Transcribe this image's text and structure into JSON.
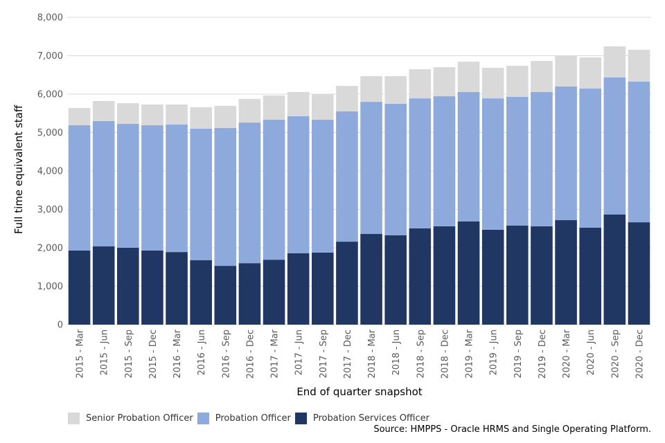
{
  "chart_data": {
    "type": "bar",
    "stacked": true,
    "title": "",
    "xlabel": "End of quarter snapshot",
    "ylabel": "Full time equivalent staff",
    "ylim": [
      0,
      8000
    ],
    "yticks": [
      0,
      1000,
      2000,
      3000,
      4000,
      5000,
      6000,
      7000,
      8000
    ],
    "ytick_labels": [
      "0",
      "1,000",
      "2,000",
      "3,000",
      "4,000",
      "5,000",
      "6,000",
      "7,000",
      "8,000"
    ],
    "grid": true,
    "legend_position": "bottom-left",
    "categories": [
      "2015 - Mar",
      "2015 - Jun",
      "2015 - Sep",
      "2015 - Dec",
      "2016 - Mar",
      "2016 - Jun",
      "2016 - Sep",
      "2016 - Dec",
      "2017 - Mar",
      "2017 - Jun",
      "2017 - Sep",
      "2017 - Dec",
      "2018 - Mar",
      "2018 - Jun",
      "2018 - Sep",
      "2018 - Dec",
      "2019 - Mar",
      "2019 - Jun",
      "2019 - Sep",
      "2019 - Dec",
      "2020 - Mar",
      "2020 - Jun",
      "2020 - Sep",
      "2020 - Dec"
    ],
    "series": [
      {
        "name": "Probation Services Officer",
        "color": "#203764",
        "values": [
          1930,
          2040,
          2000,
          1930,
          1890,
          1680,
          1530,
          1600,
          1690,
          1860,
          1875,
          2160,
          2360,
          2325,
          2505,
          2560,
          2685,
          2470,
          2580,
          2560,
          2720,
          2525,
          2865,
          2665
        ]
      },
      {
        "name": "Probation Officer",
        "color": "#8EA9DB",
        "values": [
          3260,
          3260,
          3225,
          3260,
          3320,
          3420,
          3590,
          3660,
          3645,
          3565,
          3460,
          3390,
          3440,
          3425,
          3385,
          3385,
          3370,
          3420,
          3350,
          3495,
          3480,
          3620,
          3570,
          3660
        ]
      },
      {
        "name": "Senior Probation Officer",
        "color": "#D9D9D9",
        "values": [
          450,
          520,
          540,
          540,
          520,
          560,
          575,
          615,
          630,
          630,
          660,
          665,
          670,
          720,
          760,
          755,
          790,
          795,
          810,
          810,
          810,
          810,
          810,
          830
        ]
      }
    ],
    "legend_order": [
      "Senior Probation Officer",
      "Probation Officer",
      "Probation Services Officer"
    ],
    "source": "Source: HMPPS - Oracle HRMS and Single Operating Platform."
  }
}
